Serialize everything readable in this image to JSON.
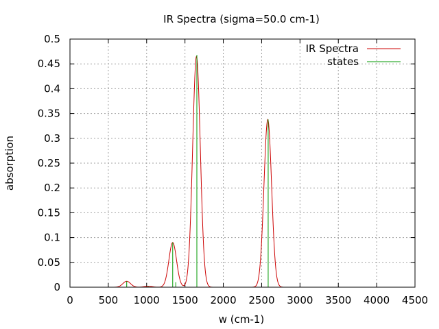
{
  "chart_data": {
    "type": "line",
    "title": "IR Spectra (sigma=50.0 cm-1)",
    "xlabel": "w (cm-1)",
    "ylabel": "absorption",
    "xlim": [
      0,
      4500
    ],
    "ylim": [
      0,
      0.5
    ],
    "xticks": [
      "0",
      "500",
      "1000",
      "1500",
      "2000",
      "2500",
      "3000",
      "3500",
      "4000",
      "4500"
    ],
    "yticks": [
      "0",
      "0.05",
      "0.1",
      "0.15",
      "0.2",
      "0.25",
      "0.3",
      "0.35",
      "0.4",
      "0.45",
      "0.5"
    ],
    "grid": true,
    "legend_position": "top-right",
    "sigma": 50.0,
    "series": [
      {
        "name": "IR Spectra",
        "kind": "line",
        "color": "#cc0000",
        "peaks": [
          {
            "center": 740,
            "height": 0.012
          },
          {
            "center": 1020,
            "height": 0.002
          },
          {
            "center": 1340,
            "height": 0.09
          },
          {
            "center": 1650,
            "height": 0.465
          },
          {
            "center": 2580,
            "height": 0.338
          }
        ]
      },
      {
        "name": "states",
        "kind": "impulse",
        "color": "#009900",
        "x": [
          740,
          1020,
          1340,
          1380,
          1655,
          2585
        ],
        "y": [
          0.012,
          0.002,
          0.09,
          0.01,
          0.468,
          0.338
        ]
      }
    ]
  }
}
